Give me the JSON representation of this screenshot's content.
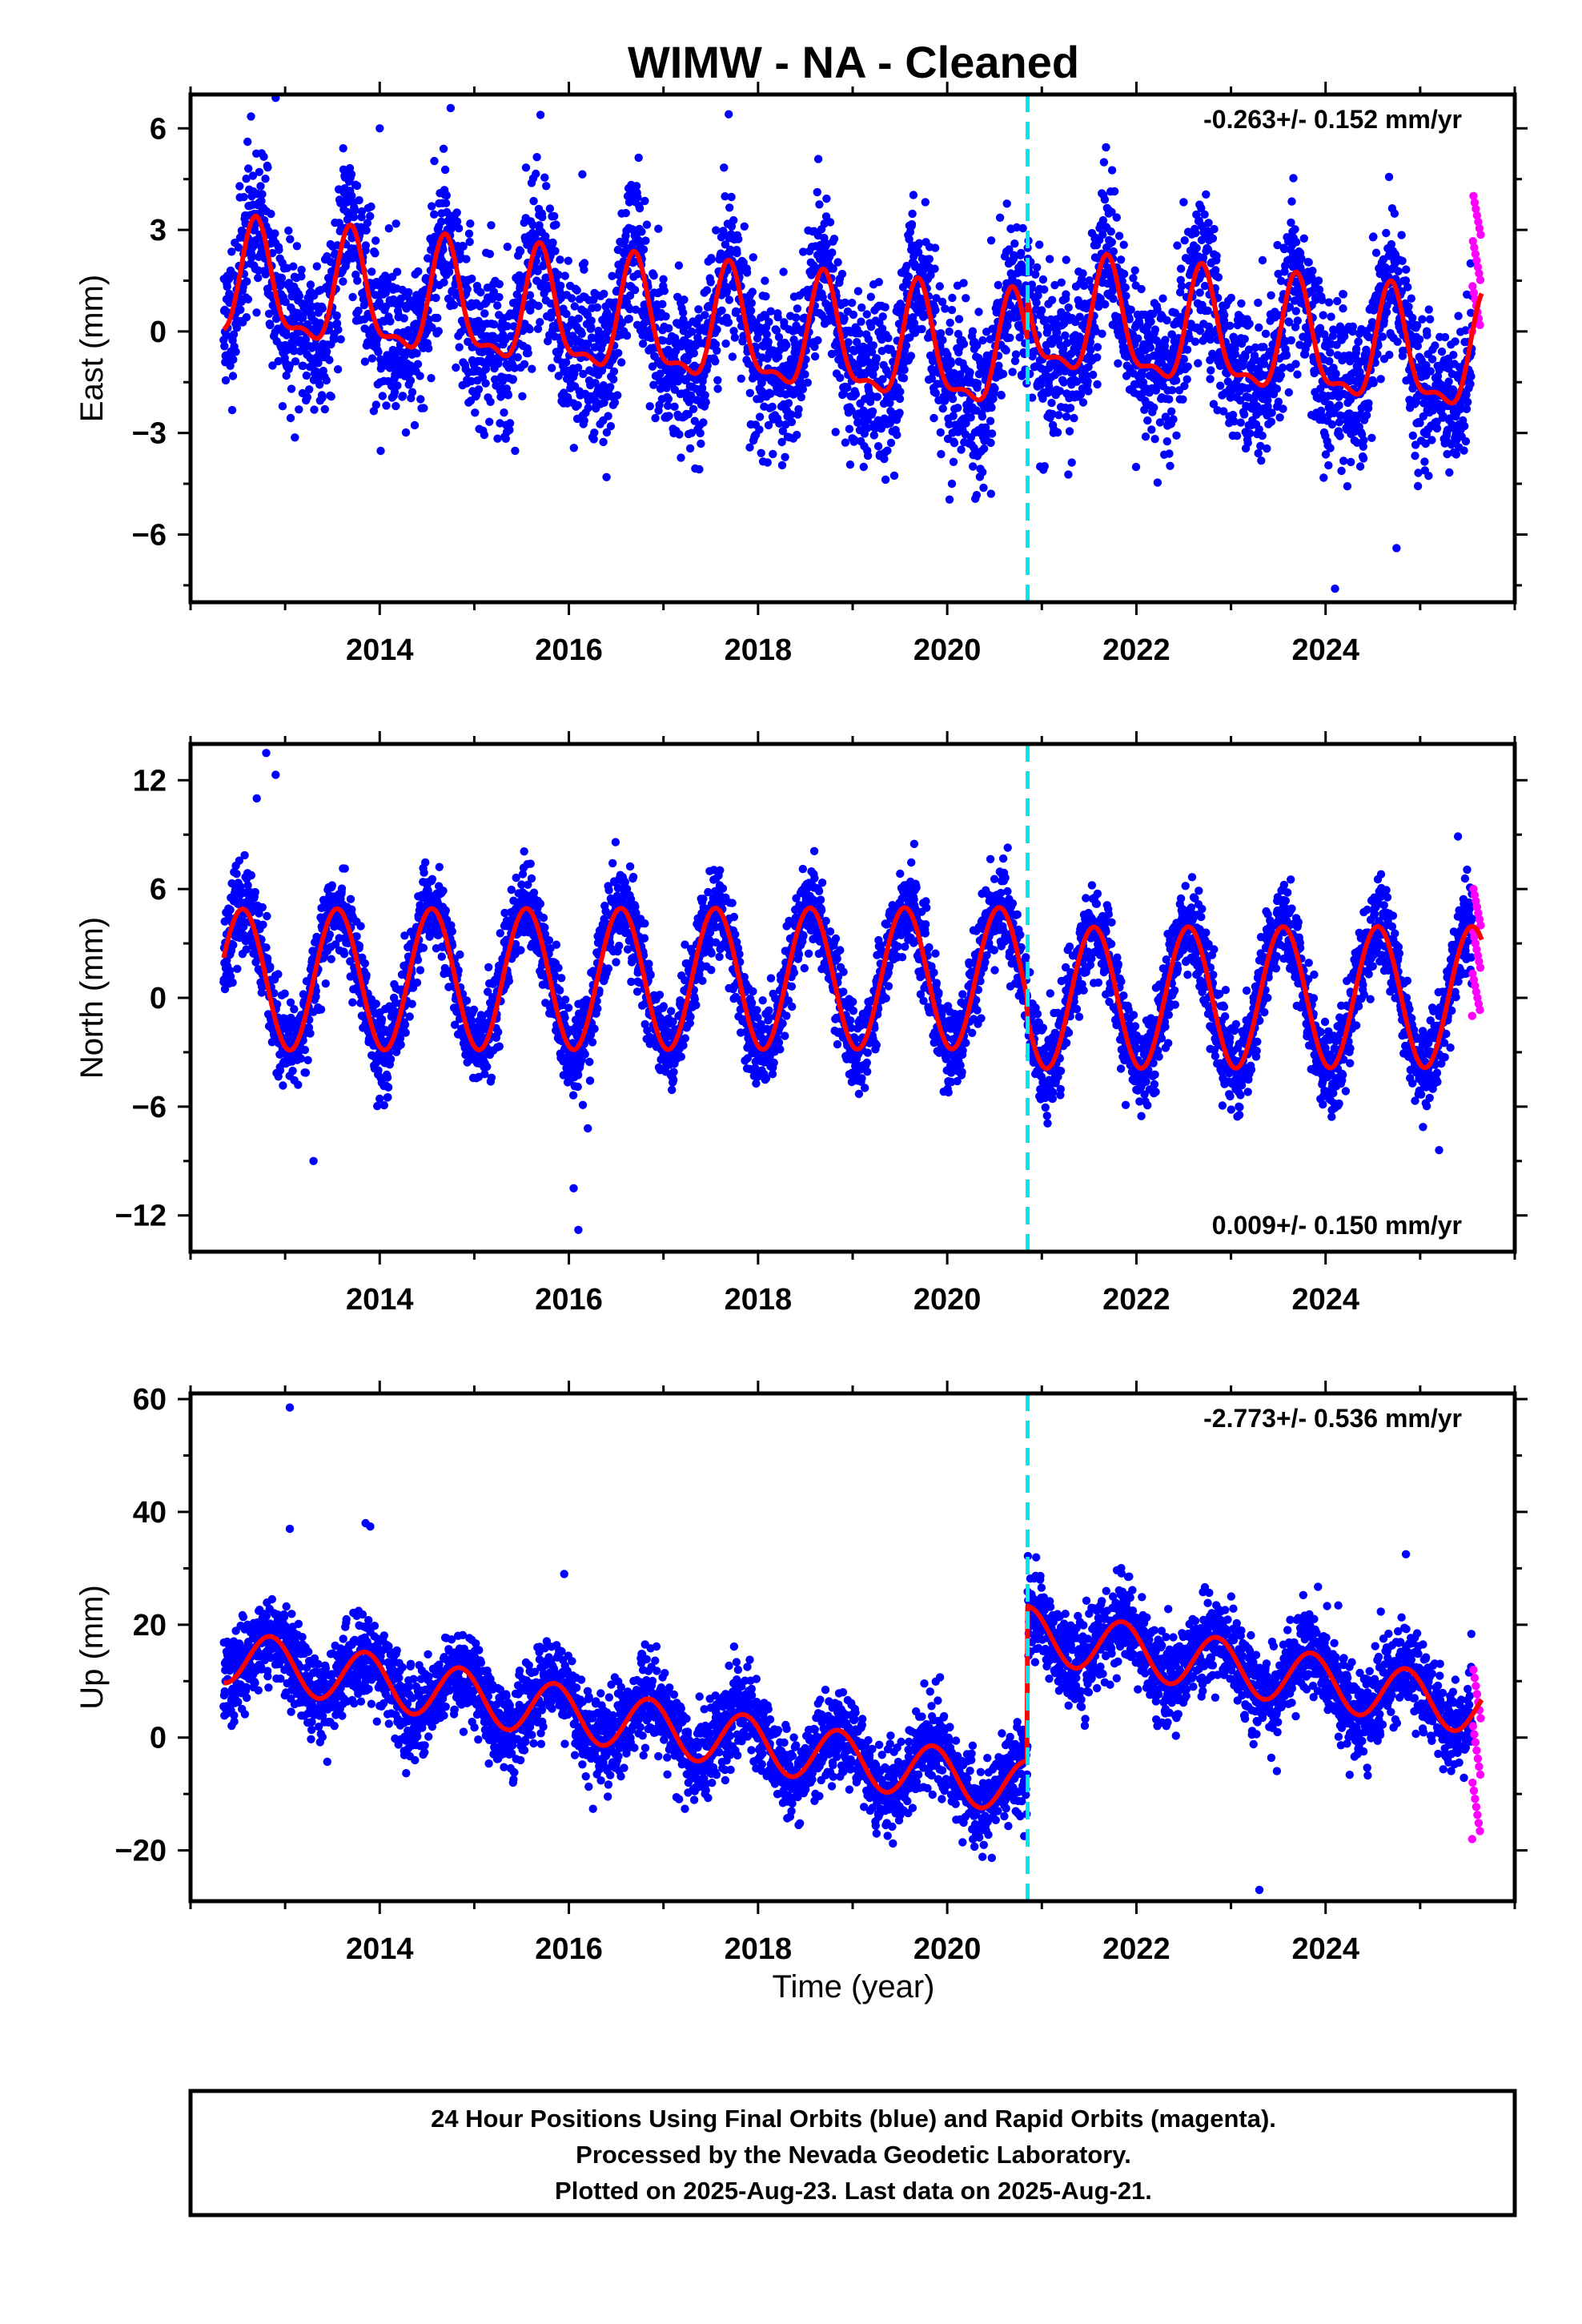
{
  "figure": {
    "title": "WIMW  - NA - Cleaned",
    "xlabel": "Time (year)",
    "footer": [
      "24 Hour Positions Using Final Orbits (blue) and Rapid Orbits (magenta).",
      "Processed by the Nevada Geodetic Laboratory.",
      "Plotted on 2025-Aug-23. Last data on 2025-Aug-21."
    ]
  },
  "colors": {
    "final": "#0000ff",
    "rapid": "#ff00ff",
    "model": "#ff0000",
    "equipment_change": "#00e5ee"
  },
  "chart_data": [
    {
      "type": "scatter",
      "panel": "east",
      "ylabel": "East (mm)",
      "rate_label": "-0.263+/- 0.152 mm/yr",
      "rate_position": "top-right",
      "xlim": [
        2012.0,
        2026.0
      ],
      "ylim": [
        -8,
        7
      ],
      "xticks": [
        2014,
        2016,
        2018,
        2020,
        2022,
        2024
      ],
      "xtick_labels": [
        "2014",
        "2016",
        "2018",
        "2020",
        "2022",
        "2024"
      ],
      "yticks": [
        -6,
        -3,
        0,
        3,
        6
      ],
      "ytick_labels": [
        "−6",
        "−3",
        "0",
        "3",
        "6"
      ],
      "equipment_change": 2020.85,
      "model": {
        "phase_peak": 2012.7,
        "series": [
          {
            "start": 2012.35,
            "end": 2020.85,
            "offset0": 1.3,
            "rate": -0.26,
            "annual": 1.6,
            "semiannual": 0.6,
            "semi_phase": 0.2
          },
          {
            "start": 2020.85,
            "end": 2025.65,
            "offset0": 0.3,
            "rate": -0.26,
            "annual": 1.6,
            "semiannual": 0.6,
            "semi_phase": 0.2
          }
        ]
      },
      "scatter": {
        "start": 2012.35,
        "end": 2025.55,
        "daily_count": 4700,
        "noise": 1.15,
        "seed": 11
      },
      "rapid": {
        "start": 2025.55,
        "end": 2025.64,
        "values_from": 0.0,
        "values_to": 4.0
      },
      "outliers": [
        [
          2012.9,
          6.9
        ],
        [
          2014.0,
          6.0
        ],
        [
          2014.75,
          6.6
        ],
        [
          2015.7,
          6.4
        ],
        [
          2020.05,
          -4.5
        ],
        [
          2024.1,
          -7.6
        ],
        [
          2024.75,
          -6.4
        ]
      ]
    },
    {
      "type": "scatter",
      "panel": "north",
      "ylabel": "North (mm)",
      "rate_label": "0.009+/- 0.150 mm/yr",
      "rate_position": "bottom-right",
      "xlim": [
        2012.0,
        2026.0
      ],
      "ylim": [
        -14,
        14
      ],
      "xticks": [
        2014,
        2016,
        2018,
        2020,
        2022,
        2024
      ],
      "xtick_labels": [
        "2014",
        "2016",
        "2018",
        "2020",
        "2022",
        "2024"
      ],
      "yticks": [
        -12,
        -6,
        0,
        6,
        12
      ],
      "ytick_labels": [
        "−12",
        "−6",
        "0",
        "6",
        "12"
      ],
      "equipment_change": 2020.85,
      "model": {
        "phase_peak": 2012.55,
        "series": [
          {
            "start": 2012.35,
            "end": 2020.85,
            "offset0": 1.0,
            "rate": 0.01,
            "annual": 3.9,
            "semiannual": 0.0,
            "semi_phase": 0.0
          },
          {
            "start": 2020.85,
            "end": 2025.65,
            "offset0": 0.0,
            "rate": 0.01,
            "annual": 3.9,
            "semiannual": 0.0,
            "semi_phase": 0.0
          }
        ]
      },
      "scatter": {
        "start": 2012.35,
        "end": 2025.55,
        "daily_count": 4700,
        "noise": 1.2,
        "seed": 23
      },
      "rapid": {
        "start": 2025.55,
        "end": 2025.64,
        "values_from": -1.0,
        "values_to": 6.0
      },
      "outliers": [
        [
          2012.8,
          13.5
        ],
        [
          2012.7,
          11.0
        ],
        [
          2012.9,
          12.3
        ],
        [
          2013.3,
          -9.0
        ],
        [
          2016.05,
          -10.5
        ],
        [
          2016.1,
          -12.8
        ],
        [
          2016.2,
          -7.2
        ],
        [
          2025.4,
          8.9
        ],
        [
          2025.2,
          -8.4
        ]
      ]
    },
    {
      "type": "scatter",
      "panel": "up",
      "ylabel": "Up (mm)",
      "rate_label": "-2.773+/- 0.536 mm/yr",
      "rate_position": "top-right",
      "xlim": [
        2012.0,
        2026.0
      ],
      "ylim": [
        -29,
        61
      ],
      "xticks": [
        2014,
        2016,
        2018,
        2020,
        2022,
        2024
      ],
      "xtick_labels": [
        "2014",
        "2016",
        "2018",
        "2020",
        "2022",
        "2024"
      ],
      "yticks": [
        -20,
        0,
        20,
        40,
        60
      ],
      "ytick_labels": [
        "−20",
        "0",
        "20",
        "40",
        "60"
      ],
      "equipment_change": 2020.85,
      "model": {
        "phase_peak": 2012.85,
        "series": [
          {
            "start": 2012.35,
            "end": 2020.85,
            "offset0": 14.5,
            "rate": -2.77,
            "annual": 4.8,
            "semiannual": 0.0,
            "semi_phase": 0.0
          },
          {
            "start": 2020.85,
            "end": 2025.65,
            "offset0": 18.5,
            "rate": -2.77,
            "annual": 4.8,
            "semiannual": 0.0,
            "semi_phase": 0.0
          }
        ]
      },
      "scatter": {
        "start": 2012.35,
        "end": 2025.55,
        "daily_count": 4700,
        "noise": 3.8,
        "seed": 37
      },
      "rapid": {
        "start": 2025.55,
        "end": 2025.64,
        "values_from": -18.0,
        "values_to": 12.0
      },
      "outliers": [
        [
          2013.05,
          58.5
        ],
        [
          2013.85,
          38.0
        ],
        [
          2013.9,
          37.4
        ],
        [
          2013.05,
          37.0
        ],
        [
          2015.95,
          29.0
        ],
        [
          2024.85,
          32.5
        ],
        [
          2022.85,
          18.5
        ],
        [
          2023.3,
          -27.0
        ]
      ]
    }
  ]
}
